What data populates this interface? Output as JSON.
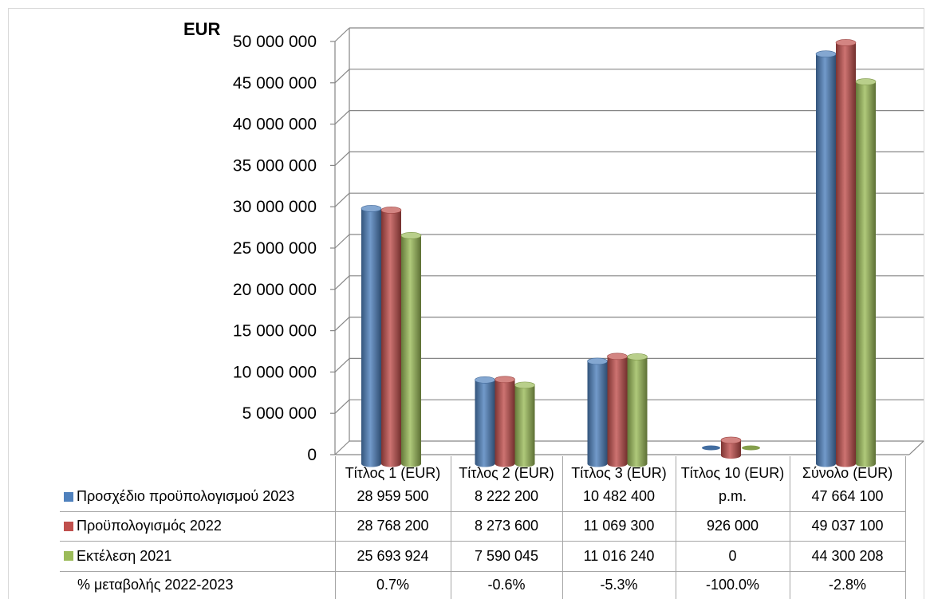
{
  "chart_data": {
    "type": "bar",
    "categories": [
      "Τίτλος 1 (EUR)",
      "Τίτλος 2 (EUR)",
      "Τίτλος 3 (EUR)",
      "Τίτλος 10 (EUR)",
      "Σύνολο (EUR)"
    ],
    "series": [
      {
        "name": "Προσχέδιο προϋπολογισμού 2023",
        "color": "#4F81BD",
        "values": [
          28959500,
          8222200,
          10482400,
          null,
          47664100
        ]
      },
      {
        "name": "Προϋπολογισμός 2022",
        "color": "#C0504D",
        "values": [
          28768200,
          8273600,
          11069300,
          926000,
          49037100
        ]
      },
      {
        "name": "Εκτέλεση 2021",
        "color": "#9BBB59",
        "values": [
          25693924,
          7590045,
          11016240,
          0,
          44300208
        ]
      }
    ],
    "ylabel": "EUR",
    "ylim": [
      0,
      50000000
    ],
    "yticks": [
      "0",
      "5 000 000",
      "10 000 000",
      "15 000 000",
      "20 000 000",
      "25 000 000",
      "30 000 000",
      "35 000 000",
      "40 000 000",
      "45 000 000",
      "50 000 000"
    ],
    "grid": true,
    "legend": "data-table"
  },
  "table": {
    "series_cells": [
      [
        "28 959 500",
        "8 222 200",
        "10 482 400",
        "p.m.",
        "47 664 100"
      ],
      [
        "28 768 200",
        "8 273 600",
        "11 069 300",
        "926 000",
        "49 037 100"
      ],
      [
        "25 693 924",
        "7 590 045",
        "11 016 240",
        "0",
        "44 300 208"
      ]
    ],
    "change_row": {
      "label": "% μεταβολής 2022-2023",
      "cells": [
        "0.7%",
        "-0.6%",
        "-5.3%",
        "-100.0%",
        "-2.8%"
      ]
    }
  }
}
